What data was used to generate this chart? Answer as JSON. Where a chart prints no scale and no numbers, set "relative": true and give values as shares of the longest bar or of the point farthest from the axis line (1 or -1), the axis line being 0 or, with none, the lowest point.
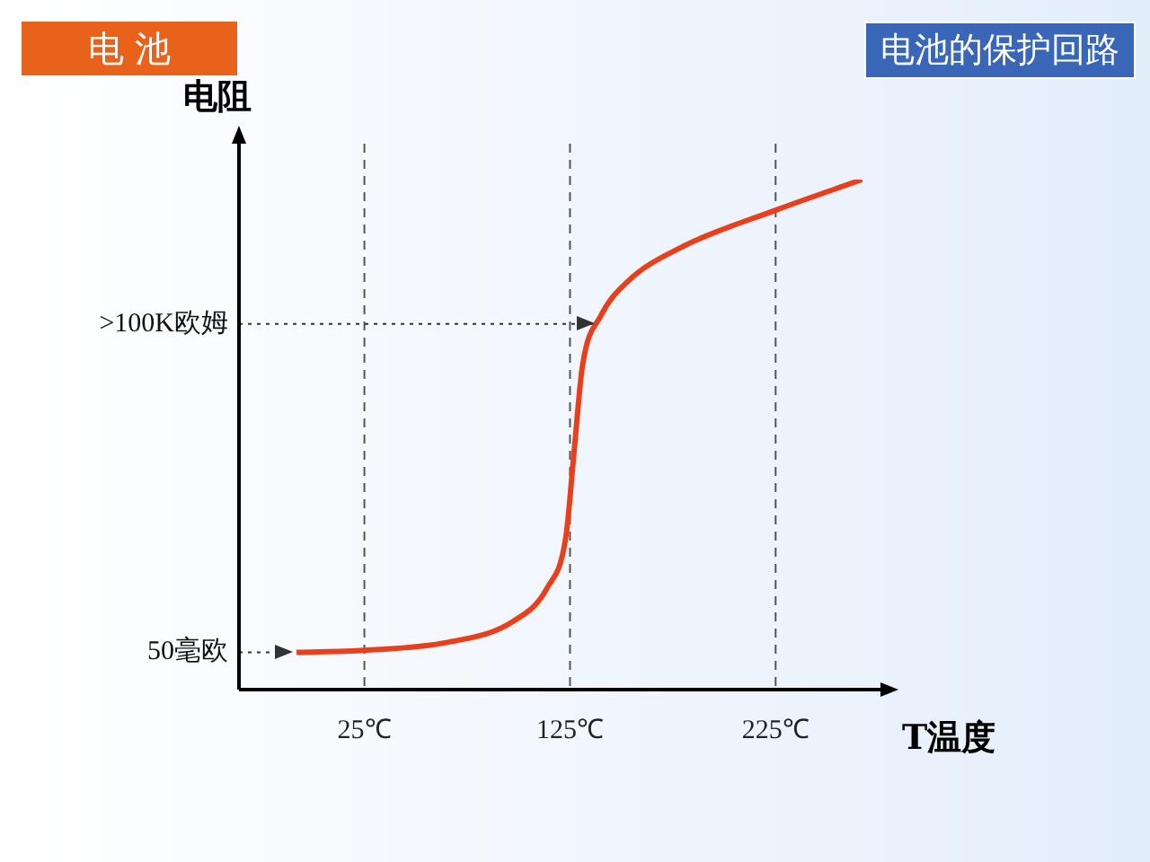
{
  "chart_data": {
    "type": "line",
    "title": "电池的保护回路",
    "subtitle": "电 池",
    "xlabel": "T温度",
    "ylabel": "电阻",
    "relative": true,
    "grid": false,
    "legend": false,
    "marker": "none",
    "line_style": "solid",
    "x": [
      -8,
      25,
      66,
      97,
      114,
      123,
      127,
      131,
      140,
      153,
      179,
      225,
      267
    ],
    "series": [
      {
        "color": "#e8401c",
        "values": [
          0.073,
          0.077,
          0.093,
          0.133,
          0.2,
          0.3,
          0.467,
          0.633,
          0.733,
          0.8,
          0.867,
          0.94,
          1
        ]
      }
    ],
    "xlim": [
      -36,
      276
    ],
    "xticks": [
      {
        "value": 25,
        "label": "25℃"
      },
      {
        "value": 125,
        "label": "125℃"
      },
      {
        "value": 225,
        "label": "225℃"
      }
    ],
    "ref_lines": [
      {
        "axis": "x",
        "value": 25,
        "line_style": "dashed",
        "color": "#555555"
      },
      {
        "axis": "x",
        "value": 125,
        "line_style": "dashed",
        "color": "#555555"
      },
      {
        "axis": "x",
        "value": 225,
        "line_style": "dashed",
        "color": "#555555"
      },
      {
        "axis": "y",
        "value": 0.717,
        "label": ">100K欧姆",
        "line_style": "dotted",
        "color": "#333333"
      },
      {
        "axis": "y",
        "value": 0.073,
        "label": "50毫欧",
        "line_style": "dotted",
        "color": "#333333"
      }
    ]
  }
}
